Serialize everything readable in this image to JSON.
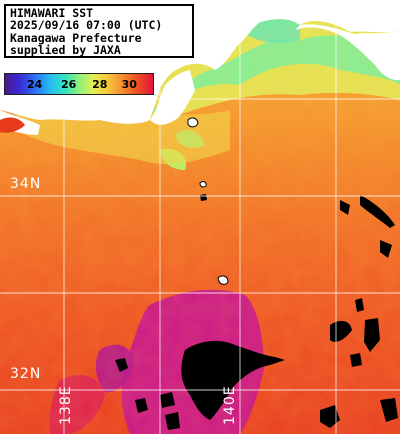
{
  "title": {
    "line1": "HIMAWARI SST",
    "line2": "2025/09/16 07:00 (UTC)",
    "line3": "Kanagawa Prefecture",
    "line4": "supplied by JAXA"
  },
  "legend": {
    "labels": [
      "24",
      "26",
      "28",
      "30"
    ]
  },
  "grid": {
    "lat_labels": [
      "34N",
      "32N"
    ],
    "lon_labels": [
      "138E",
      "140E"
    ]
  },
  "colors": {
    "land": "#ffffff",
    "no_data": "#000000",
    "warm_core": "#c8158e",
    "sea_base": "#ef4a22",
    "coastal_cool": "#7ef09a",
    "grid_line": "#ffffff"
  }
}
